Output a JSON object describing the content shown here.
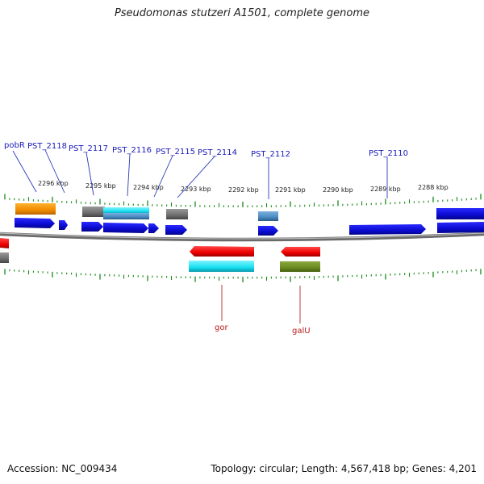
{
  "title": "Pseudomonas stutzeri A1501, complete genome",
  "accession": "Accession: NC_009434",
  "summary": "Topology: circular; Length: 4,567,418 bp; Genes: 4,201",
  "scale_labels": [
    {
      "text": "2296 kbp",
      "x": 2296
    },
    {
      "text": "2295 kbp",
      "x": 2295
    },
    {
      "text": "2294 kbp",
      "x": 2294
    },
    {
      "text": "2293 kbp",
      "x": 2293
    },
    {
      "text": "2292 kbp",
      "x": 2292
    },
    {
      "text": "2291 kbp",
      "x": 2291
    },
    {
      "text": "2290 kbp",
      "x": 2290
    },
    {
      "text": "2289 kbp",
      "x": 2289
    },
    {
      "text": "2288 kbp",
      "x": 2288
    }
  ],
  "top_gene_labels": [
    "pobR",
    "PST_2118",
    "PST_2117",
    "PST_2116",
    "PST_2115",
    "PST_2114",
    "PST_2112",
    "PST_2110"
  ],
  "bottom_gene_labels": [
    "gor",
    "galU"
  ],
  "colors": {
    "cds": "#1010e0",
    "rrna_orange": "#f08c00",
    "gray": "#6e6e6e",
    "cyan": "#18e0f0",
    "steel": "#4a8ac0",
    "red": "#f00000",
    "olive": "#6a8a20",
    "backbone": "#808080",
    "tick": "#1a8a1a",
    "top_label": "#1a1ab8",
    "bottom_label": "#b81818"
  }
}
